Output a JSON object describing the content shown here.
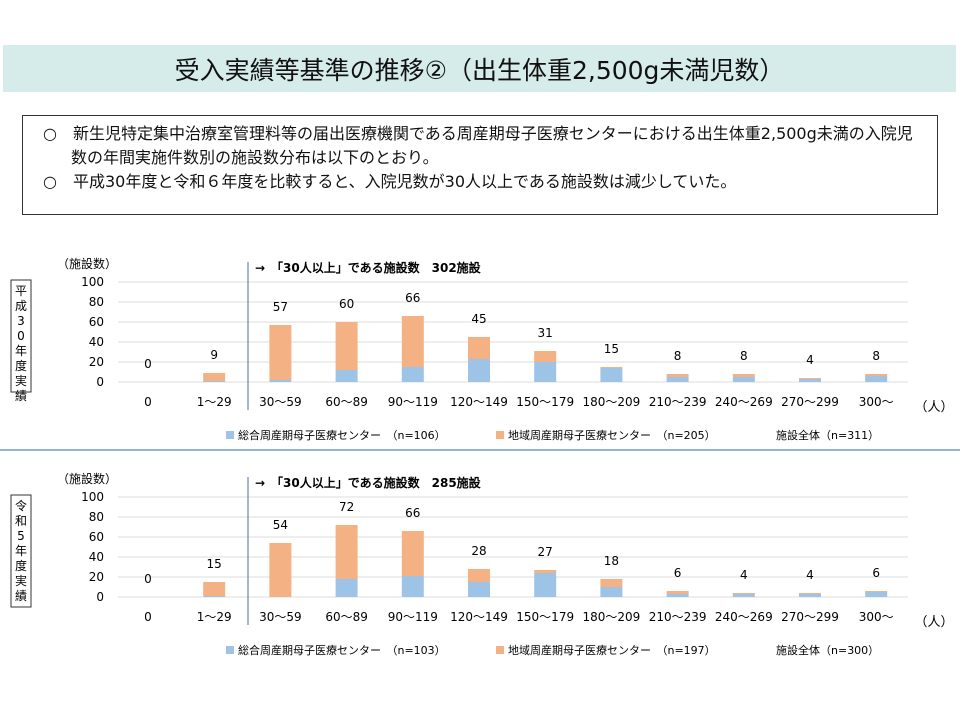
{
  "title": "受入実績等基準の推移②（出生体重2,500g未満児数）",
  "notes": [
    "○　新生児特定集中治療室管理料等の届出医療機関である周産期母子医療センターにおける出生体重2,500g未満の入院児数の年間実施件数別の施設数分布は以下のとおり。",
    "○　平成30年度と令和６年度を比較すると、入院児数が30人以上である施設数は減少していた。"
  ],
  "colors": {
    "general": "#9dc3e6",
    "regional": "#f4b183"
  },
  "chart_data": [
    {
      "type": "bar",
      "stacked": true,
      "side_label": "平成30年度実績",
      "ylabel": "（施設数）",
      "xlabel": "（人）",
      "ylim": [
        0,
        100
      ],
      "yticks": [
        0,
        20,
        40,
        60,
        80,
        100
      ],
      "annotation": "→　「30人以上」である施設数　302施設",
      "categories": [
        "0",
        "1～29",
        "30～59",
        "60～89",
        "90～119",
        "120～149",
        "150～179",
        "180～209",
        "210～239",
        "240～269",
        "270～299",
        "300～"
      ],
      "totals": [
        0,
        9,
        57,
        60,
        66,
        45,
        31,
        15,
        8,
        8,
        4,
        8
      ],
      "series": [
        {
          "name": "総合周産期母子医療センター　（n=106）",
          "values": [
            0,
            1,
            2,
            12,
            15,
            23,
            20,
            14,
            5,
            5,
            3,
            6
          ]
        },
        {
          "name": "地域周産期母子医療センター　（n=205）",
          "values": [
            0,
            8,
            55,
            48,
            51,
            22,
            11,
            1,
            3,
            3,
            1,
            2
          ]
        }
      ],
      "total_label": "施設全体（n=311）"
    },
    {
      "type": "bar",
      "stacked": true,
      "side_label": "令和5年度実績",
      "ylabel": "（施設数）",
      "xlabel": "（人）",
      "ylim": [
        0,
        100
      ],
      "yticks": [
        0,
        20,
        40,
        60,
        80,
        100
      ],
      "annotation": "→　「30人以上」である施設数　285施設",
      "categories": [
        "0",
        "1～29",
        "30～59",
        "60～89",
        "90～119",
        "120～149",
        "150～179",
        "180～209",
        "210～239",
        "240～269",
        "270～299",
        "300～"
      ],
      "totals": [
        0,
        15,
        54,
        72,
        66,
        28,
        27,
        18,
        6,
        4,
        4,
        6
      ],
      "series": [
        {
          "name": "総合周産期母子医療センター　（n=103）",
          "values": [
            0,
            1,
            0,
            18,
            21,
            15,
            24,
            10,
            3,
            3,
            3,
            5
          ]
        },
        {
          "name": "地域周産期母子医療センター　（n=197）",
          "values": [
            0,
            14,
            54,
            54,
            45,
            13,
            3,
            8,
            3,
            1,
            1,
            1
          ]
        }
      ],
      "total_label": "施設全体（n=300）"
    }
  ]
}
